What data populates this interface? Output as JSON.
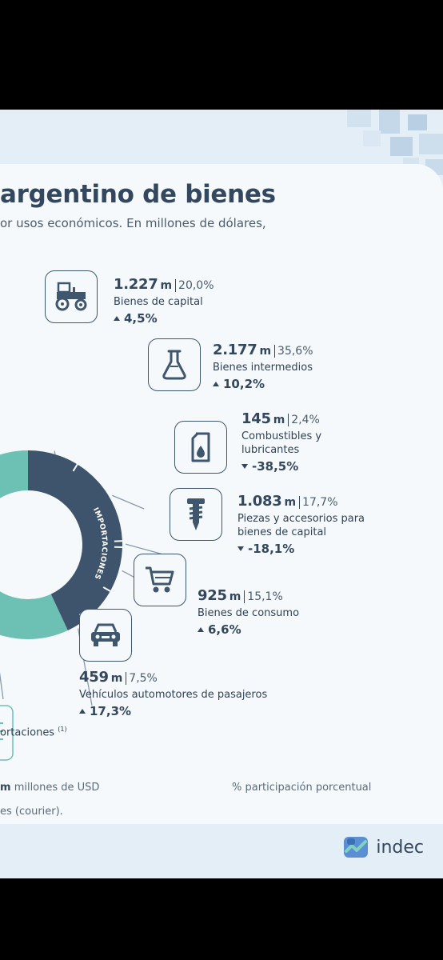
{
  "header": {
    "title": "argentino de bienes",
    "subtitle": "or usos económicos. En millones de dólares,"
  },
  "chart_data": {
    "type": "pie",
    "ring_label": "IMPORTACIONES",
    "unit_legend": "m",
    "unit_legend_text": "millones de USD",
    "pct_legend": "% participación porcentual",
    "series": [
      {
        "name": "Bienes de capital",
        "value": "1.227",
        "value_num": 1227,
        "unit": "m",
        "share": "20,0%",
        "share_num": 20.0,
        "change": "4,5%",
        "direction": "up",
        "icon": "tractor-icon"
      },
      {
        "name": "Bienes intermedios",
        "value": "2.177",
        "value_num": 2177,
        "unit": "m",
        "share": "35,6%",
        "share_num": 35.6,
        "change": "10,2%",
        "direction": "up",
        "icon": "flask-icon"
      },
      {
        "name": "Combustibles y lubricantes",
        "value": "145",
        "value_num": 145,
        "unit": "m",
        "share": "2,4%",
        "share_num": 2.4,
        "change": "-38,5%",
        "direction": "down",
        "icon": "fuel-can-icon"
      },
      {
        "name": "Piezas y accesorios para bienes de capital",
        "value": "1.083",
        "value_num": 1083,
        "unit": "m",
        "share": "17,7%",
        "share_num": 17.7,
        "change": "-18,1%",
        "direction": "down",
        "icon": "screw-icon"
      },
      {
        "name": "Bienes de consumo",
        "value": "925",
        "value_num": 925,
        "unit": "m",
        "share": "15,1%",
        "share_num": 15.1,
        "change": "6,6%",
        "direction": "up",
        "icon": "shopping-cart-icon"
      },
      {
        "name": "Vehículos automotores de pasajeros",
        "value": "459",
        "value_num": 459,
        "unit": "m",
        "share": "7,5%",
        "share_num": 7.5,
        "change": "17,3%",
        "direction": "up",
        "icon": "car-icon"
      }
    ],
    "export_label": "ortaciones",
    "export_note": "(1)"
  },
  "footer": {
    "note": "es (courier).",
    "logo_text": "indec"
  },
  "colors": {
    "navy": "#3e546c",
    "teal": "#6cc0b4",
    "background": "#f6f9fc",
    "band": "#e4eef7"
  }
}
